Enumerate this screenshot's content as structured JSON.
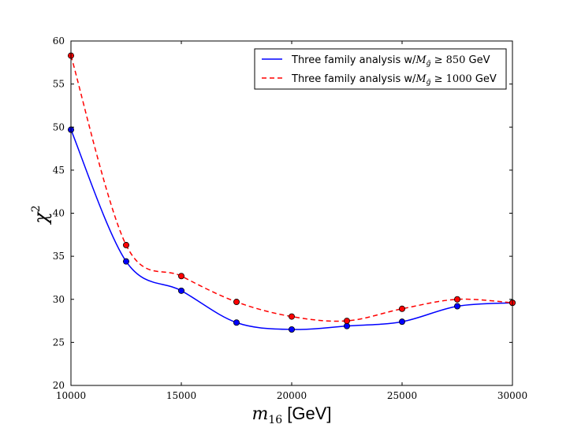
{
  "chart_data": {
    "type": "line",
    "title": "",
    "xlabel": "m16 [GeV]",
    "xlabel_math": "m",
    "xlabel_sub": "16",
    "xlabel_unit": "[GeV]",
    "ylabel": "χ2",
    "ylabel_math": "χ",
    "ylabel_sup": "2",
    "xlim": [
      10000,
      30000
    ],
    "ylim": [
      20,
      60
    ],
    "x": [
      10000,
      12500,
      15000,
      17500,
      20000,
      22500,
      25000,
      27500,
      30000
    ],
    "x_tick_labels": [
      "10000",
      "15000",
      "20000",
      "25000",
      "30000"
    ],
    "y_tick_labels": [
      "20",
      "25",
      "30",
      "35",
      "40",
      "45",
      "50",
      "55",
      "60"
    ],
    "legend_position": "top-right",
    "series": [
      {
        "name": "Three family analysis w/M_g̃ ≥ 850 GeV",
        "legend_prefix": "Three family analysis w/",
        "legend_math": "M",
        "legend_sub": "g̃",
        "legend_rel": " ≥ 850",
        "legend_suffix": " GeV",
        "color": "#0000ff",
        "marker_color": "#0000ff",
        "line_style": "solid",
        "values": [
          49.7,
          34.4,
          31.0,
          27.3,
          26.5,
          26.9,
          27.4,
          29.2,
          29.6
        ]
      },
      {
        "name": "Three family analysis w/M_g̃ ≥ 1000 GeV",
        "legend_prefix": "Three family analysis w/",
        "legend_math": "M",
        "legend_sub": "g̃",
        "legend_rel": " ≥ 1000",
        "legend_suffix": " GeV",
        "color": "#ff0000",
        "marker_color": "#ff0000",
        "line_style": "dashed",
        "values": [
          58.3,
          36.3,
          32.7,
          29.7,
          28.0,
          27.5,
          28.9,
          30.0,
          29.6
        ]
      }
    ]
  }
}
